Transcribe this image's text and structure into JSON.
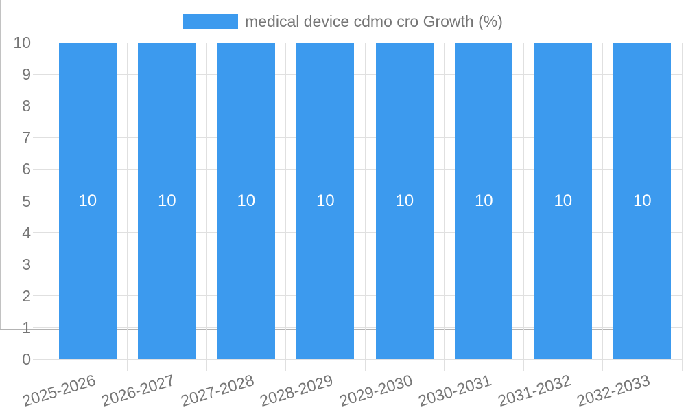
{
  "legend": {
    "label": "medical device cdmo cro Growth (%)"
  },
  "chart_data": {
    "type": "bar",
    "title": "",
    "categories": [
      "2025-2026",
      "2026-2027",
      "2027-2028",
      "2028-2029",
      "2029-2030",
      "2030-2031",
      "2031-2032",
      "2032-2033"
    ],
    "series": [
      {
        "name": "medical device cdmo cro Growth (%)",
        "values": [
          10,
          10,
          10,
          10,
          10,
          10,
          10,
          10
        ]
      }
    ],
    "bar_value_labels": [
      "10",
      "10",
      "10",
      "10",
      "10",
      "10",
      "10",
      "10"
    ],
    "xlabel": "",
    "ylabel": "",
    "ylim": [
      0,
      10
    ],
    "yticks": [
      "0",
      "1",
      "2",
      "3",
      "4",
      "5",
      "6",
      "7",
      "8",
      "9",
      "10"
    ],
    "grid": true,
    "legend_position": "top-center",
    "x_label_rotation_deg": -17
  },
  "colors": {
    "bar": "#3C9AEE",
    "bar_value_label": "#FFFFFF",
    "axis_text": "#757575",
    "grid_line": "#E0E0E0",
    "x_axis_line": "#B3B3B3",
    "y_axis_line": "#C2C2C2",
    "background": "#FFFFFF"
  }
}
